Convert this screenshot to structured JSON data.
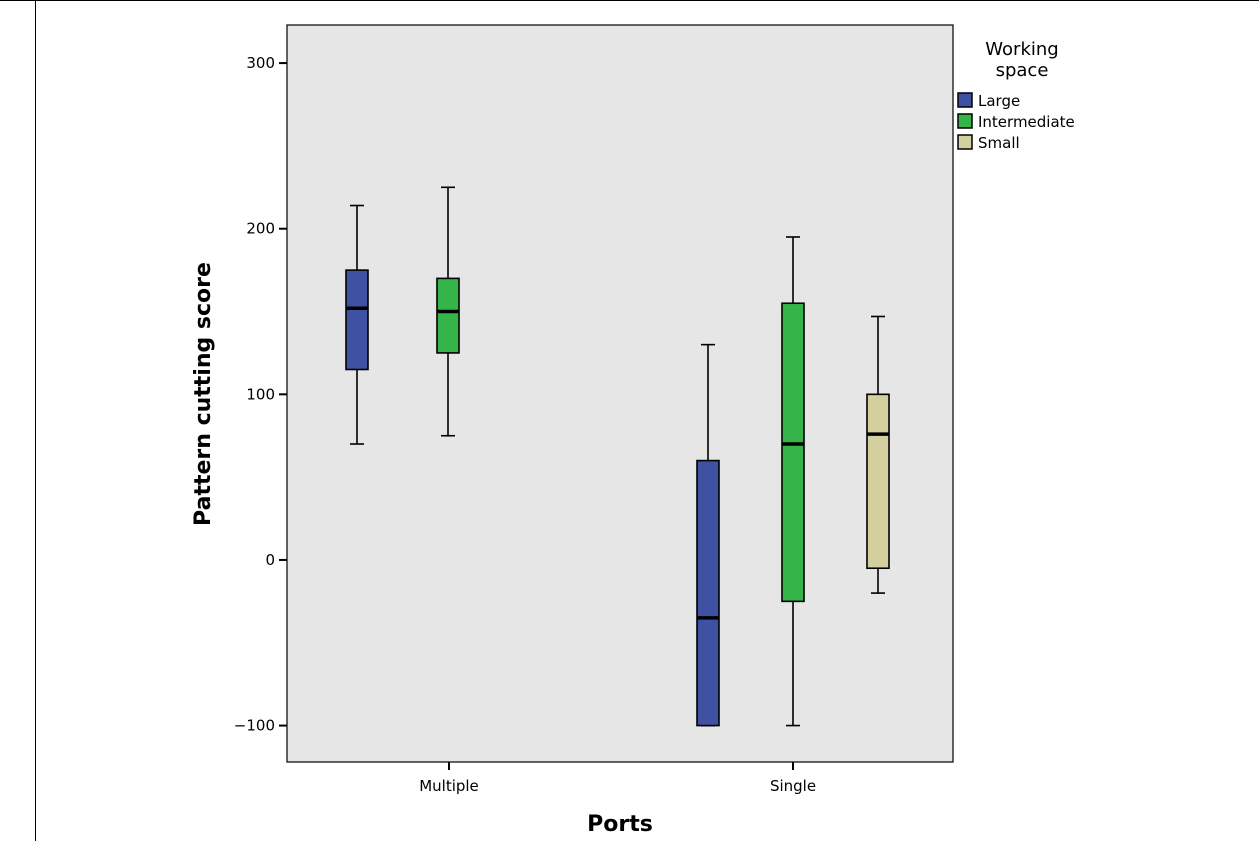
{
  "chart_data": {
    "type": "box",
    "xlabel": "Ports",
    "ylabel": "Pattern cutting score",
    "ylim": [
      -122,
      323
    ],
    "yticks": [
      -100,
      0,
      100,
      200,
      300
    ],
    "categories": [
      "Multiple",
      "Single"
    ],
    "legend": {
      "title_lines": [
        "Working",
        "space"
      ],
      "placement": "top-right, outside plot"
    },
    "series": [
      {
        "name": "Large",
        "color": "#3f51a3",
        "boxes": [
          {
            "category": "Multiple",
            "min": 70,
            "q1": 115,
            "median": 152,
            "q3": 175,
            "max": 214
          },
          {
            "category": "Single",
            "min": -100,
            "q1": -100,
            "median": -35,
            "q3": 60,
            "max": 130
          }
        ]
      },
      {
        "name": "Intermediate",
        "color": "#35b44a",
        "boxes": [
          {
            "category": "Multiple",
            "min": 75,
            "q1": 125,
            "median": 150,
            "q3": 170,
            "max": 225
          },
          {
            "category": "Single",
            "min": -100,
            "q1": -25,
            "median": 70,
            "q3": 155,
            "max": 195
          }
        ]
      },
      {
        "name": "Small",
        "color": "#d3cf9f",
        "boxes": [
          {
            "category": "Single",
            "min": -20,
            "q1": -5,
            "median": 76,
            "q3": 100,
            "max": 147
          }
        ]
      }
    ],
    "plot_background": "#e6e6e6",
    "grid": false
  }
}
